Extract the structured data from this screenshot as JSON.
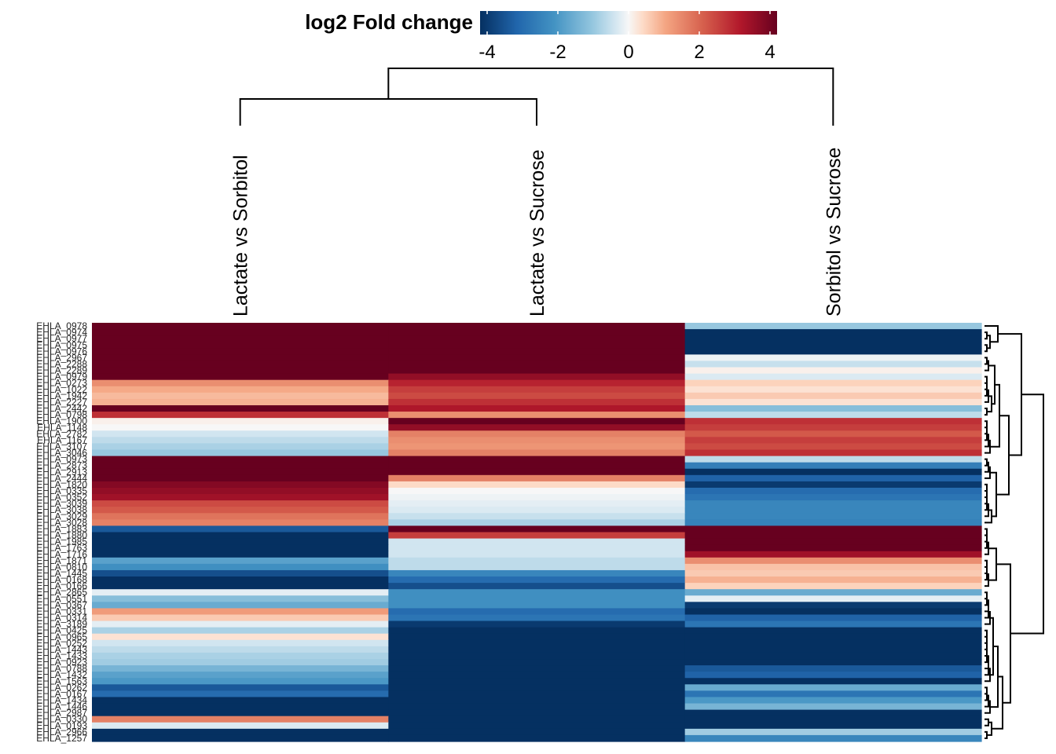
{
  "chart_data": {
    "type": "heatmap",
    "legend": {
      "title": "log2 Fold change",
      "ticks": [
        -4,
        -2,
        0,
        2,
        4
      ],
      "tick_labels": [
        "-4",
        "-2",
        "0",
        "2",
        "4"
      ],
      "range": [
        -4.2,
        4.2
      ],
      "placement": "top"
    },
    "colorscale": [
      [
        -4.2,
        "#053061"
      ],
      [
        -3.15,
        "#2166ac"
      ],
      [
        -2.1,
        "#4393c3"
      ],
      [
        -1.05,
        "#92c5de"
      ],
      [
        -0.4,
        "#d1e5f0"
      ],
      [
        0,
        "#f7f7f7"
      ],
      [
        0.4,
        "#fddbc7"
      ],
      [
        1.05,
        "#f4a582"
      ],
      [
        2.1,
        "#d6604d"
      ],
      [
        3.15,
        "#b2182b"
      ],
      [
        4.2,
        "#67001f"
      ]
    ],
    "columns": [
      "Lactate vs Sorbitol",
      "Lactate vs Sucrose",
      "Sorbitol vs Sucrose"
    ],
    "rows": [
      "EHLA_0978",
      "EHLA_0974",
      "EHLA_0977",
      "EHLA_0975",
      "EHLA_0976",
      "EHLA_2967",
      "EHLA_2288",
      "EHLA_2289",
      "EHLA_0979",
      "EHLA_0273",
      "EHLA_1022",
      "EHLA_1942",
      "EHLA_2227",
      "EHLA_2442",
      "EHLA_0798",
      "EHLA_1900",
      "EHLA_1148",
      "EHLA_2782",
      "EHLA_1167",
      "EHLA_3107",
      "EHLA_3046",
      "EHLA_0973",
      "EHLA_2873",
      "EHLA_2913",
      "EHLA_2444",
      "EHLA_1820",
      "EHLA_0335",
      "EHLA_0352",
      "EHLA_3039",
      "EHLA_3038",
      "EHLA_3029",
      "EHLA_3028",
      "EHLA_1883",
      "EHLA_1880",
      "EHLA_1985",
      "EHLA_1763",
      "EHLA_1716",
      "EHLA_1871",
      "EHLA_0810",
      "EHLA_1445",
      "EHLA_0168",
      "EHLA_0166",
      "EHLA_2865",
      "EHLA_0551",
      "EHLA_0367",
      "EHLA_0331",
      "EHLA_0314",
      "EHLA_3189",
      "EHLA_0425",
      "EHLA_0965",
      "EHLA_0252",
      "EHLA_1443",
      "EHLA_1433",
      "EHLA_0923",
      "EHLA_0788",
      "EHLA_1432",
      "EHLA_1563",
      "EHLA_0262",
      "EHLA_0167",
      "EHLA_1434",
      "EHLA_1446",
      "EHLA_2987",
      "EHLA_0330",
      "EHLA_0193",
      "EHLA_2966",
      "EHLA_1257"
    ],
    "values": [
      [
        4.2,
        4.2,
        -1.0
      ],
      [
        4.2,
        4.2,
        -4.2
      ],
      [
        4.2,
        4.2,
        -4.2
      ],
      [
        4.2,
        4.2,
        -4.2
      ],
      [
        4.2,
        4.2,
        -4.2
      ],
      [
        4.2,
        4.2,
        -0.1
      ],
      [
        4.2,
        4.2,
        -0.5
      ],
      [
        4.2,
        4.2,
        0.1
      ],
      [
        4.2,
        3.6,
        -0.3
      ],
      [
        1.4,
        3.0,
        0.5
      ],
      [
        1.0,
        2.6,
        0.3
      ],
      [
        0.8,
        2.4,
        0.6
      ],
      [
        0.9,
        2.8,
        0.3
      ],
      [
        4.2,
        3.2,
        -1.2
      ],
      [
        2.8,
        1.4,
        -0.6
      ],
      [
        0.1,
        4.2,
        2.8
      ],
      [
        0.0,
        3.6,
        2.6
      ],
      [
        -0.4,
        1.6,
        2.2
      ],
      [
        -0.6,
        1.4,
        2.6
      ],
      [
        -0.8,
        1.3,
        2.4
      ],
      [
        -1.0,
        1.6,
        2.8
      ],
      [
        4.2,
        4.2,
        -0.6
      ],
      [
        4.2,
        4.2,
        -2.6
      ],
      [
        4.2,
        4.2,
        -4.2
      ],
      [
        4.2,
        1.6,
        -3.2
      ],
      [
        3.8,
        0.4,
        -4.0
      ],
      [
        3.6,
        0.0,
        -3.0
      ],
      [
        3.4,
        -0.1,
        -2.8
      ],
      [
        2.4,
        -0.2,
        -2.4
      ],
      [
        2.2,
        -0.3,
        -2.4
      ],
      [
        1.8,
        -0.5,
        -2.4
      ],
      [
        1.6,
        -0.8,
        -2.5
      ],
      [
        -3.4,
        4.2,
        4.2
      ],
      [
        -4.2,
        2.6,
        4.2
      ],
      [
        -4.2,
        -0.4,
        4.2
      ],
      [
        -4.2,
        -0.4,
        4.2
      ],
      [
        -4.2,
        -0.4,
        3.4
      ],
      [
        -1.8,
        -0.6,
        1.4
      ],
      [
        -2.2,
        -0.6,
        0.7
      ],
      [
        -3.6,
        -2.4,
        0.6
      ],
      [
        -4.2,
        -3.0,
        0.9
      ],
      [
        -4.2,
        -3.6,
        0.5
      ],
      [
        -0.2,
        -2.2,
        -1.6
      ],
      [
        -1.2,
        -2.2,
        -0.2
      ],
      [
        -1.6,
        -2.2,
        -4.0
      ],
      [
        1.2,
        -3.0,
        -4.2
      ],
      [
        0.6,
        -2.8,
        -3.2
      ],
      [
        -0.2,
        -4.0,
        -2.8
      ],
      [
        -0.8,
        -4.2,
        -4.2
      ],
      [
        0.3,
        -4.2,
        -4.2
      ],
      [
        -0.4,
        -4.2,
        -4.2
      ],
      [
        -0.6,
        -4.2,
        -4.2
      ],
      [
        -0.8,
        -4.2,
        -4.2
      ],
      [
        -0.9,
        -4.2,
        -4.2
      ],
      [
        -1.4,
        -4.2,
        -3.4
      ],
      [
        -1.8,
        -4.2,
        -3.2
      ],
      [
        -2.0,
        -4.2,
        -4.2
      ],
      [
        -3.4,
        -4.2,
        -1.6
      ],
      [
        -3.0,
        -4.2,
        -2.8
      ],
      [
        -4.2,
        -4.2,
        -2.0
      ],
      [
        -4.2,
        -4.2,
        -1.4
      ],
      [
        -4.2,
        -4.2,
        -4.2
      ],
      [
        1.6,
        -4.2,
        -4.2
      ],
      [
        -0.3,
        -4.2,
        -4.2
      ],
      [
        -4.2,
        -4.2,
        -0.9
      ],
      [
        -4.2,
        -4.2,
        -2.4
      ]
    ],
    "column_dendrogram": [
      {
        "merge": [
          "Lactate vs Sorbitol",
          "Lactate vs Sucrose"
        ],
        "height": 1.0
      },
      {
        "merge": [
          "cluster-1",
          "Sorbitol vs Sucrose"
        ],
        "height": 1.35
      }
    ]
  }
}
